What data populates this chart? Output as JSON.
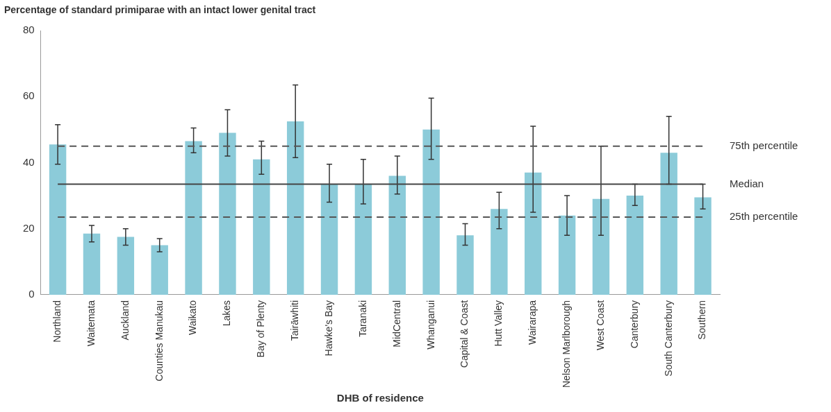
{
  "chart_data": {
    "type": "bar",
    "title": "Percentage of standard primiparae with an intact lower genital tract",
    "xlabel": "DHB of residence",
    "categories": [
      "Northland",
      "Waitemata",
      "Auckland",
      "Counties Manukau",
      "Waikato",
      "Lakes",
      "Bay of Plenty",
      "Tairāwhiti",
      "Hawke's Bay",
      "Taranaki",
      "MidCentral",
      "Whanganui",
      "Capital & Coast",
      "Hutt Valley",
      "Wairarapa",
      "Nelson Marlborough",
      "West Coast",
      "Canterbury",
      "South Canterbury",
      "Southern"
    ],
    "values": [
      45.5,
      18.5,
      17.5,
      15,
      46.5,
      49,
      41,
      52.5,
      33.5,
      33.5,
      36,
      50,
      18,
      26,
      37,
      24,
      29,
      30,
      43,
      29.5
    ],
    "errors": [
      [
        39.5,
        51.5
      ],
      [
        16,
        21
      ],
      [
        15,
        20
      ],
      [
        13,
        17
      ],
      [
        43,
        50.5
      ],
      [
        42,
        56
      ],
      [
        36.5,
        46.5
      ],
      [
        41.5,
        63.5
      ],
      [
        28,
        39.5
      ],
      [
        27.5,
        41
      ],
      [
        30.5,
        42
      ],
      [
        41,
        59.5
      ],
      [
        15,
        21.5
      ],
      [
        20,
        31
      ],
      [
        25,
        51
      ],
      [
        18,
        30
      ],
      [
        18,
        45
      ],
      [
        27,
        33.5
      ],
      [
        33.5,
        54
      ],
      [
        26,
        33.5
      ]
    ],
    "color": "#8ccbd9",
    "ylim": [
      0,
      80
    ],
    "yticks": [
      0,
      20,
      40,
      60,
      80
    ],
    "grid": false,
    "legend": false,
    "ref_lines": [
      {
        "axis": "y",
        "value": 45,
        "label": "75th percentile",
        "color": "#555555",
        "line_style": "dashed"
      },
      {
        "axis": "y",
        "value": 33.5,
        "label": "Median",
        "color": "#444444",
        "line_style": "solid"
      },
      {
        "axis": "y",
        "value": 23.5,
        "label": "25th percentile",
        "color": "#555555",
        "line_style": "dashed"
      }
    ]
  }
}
